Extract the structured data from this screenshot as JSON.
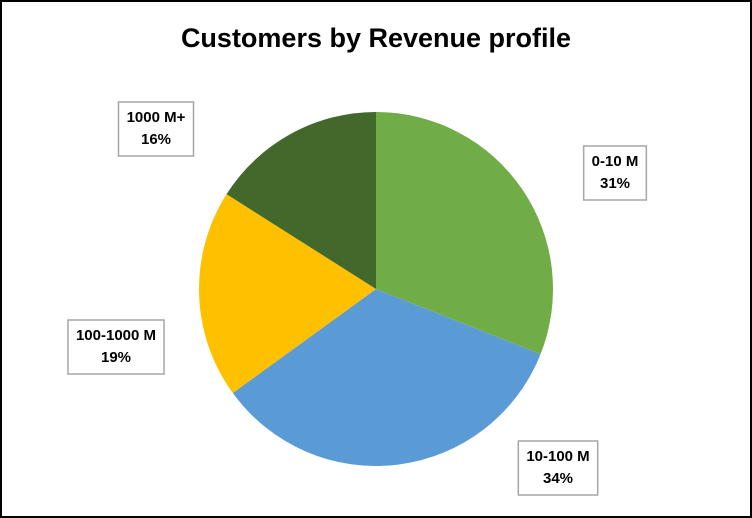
{
  "chart_data": {
    "type": "pie",
    "title": "Customers by Revenue profile",
    "categories": [
      "0-10 M",
      "10-100 M",
      "100-1000 M",
      "1000 M+"
    ],
    "values": [
      31,
      34,
      19,
      16
    ],
    "value_labels": [
      "31%",
      "34%",
      "19%",
      "16%"
    ],
    "colors": [
      "#70ad47",
      "#5b9bd5",
      "#ffc000",
      "#43682b"
    ]
  }
}
